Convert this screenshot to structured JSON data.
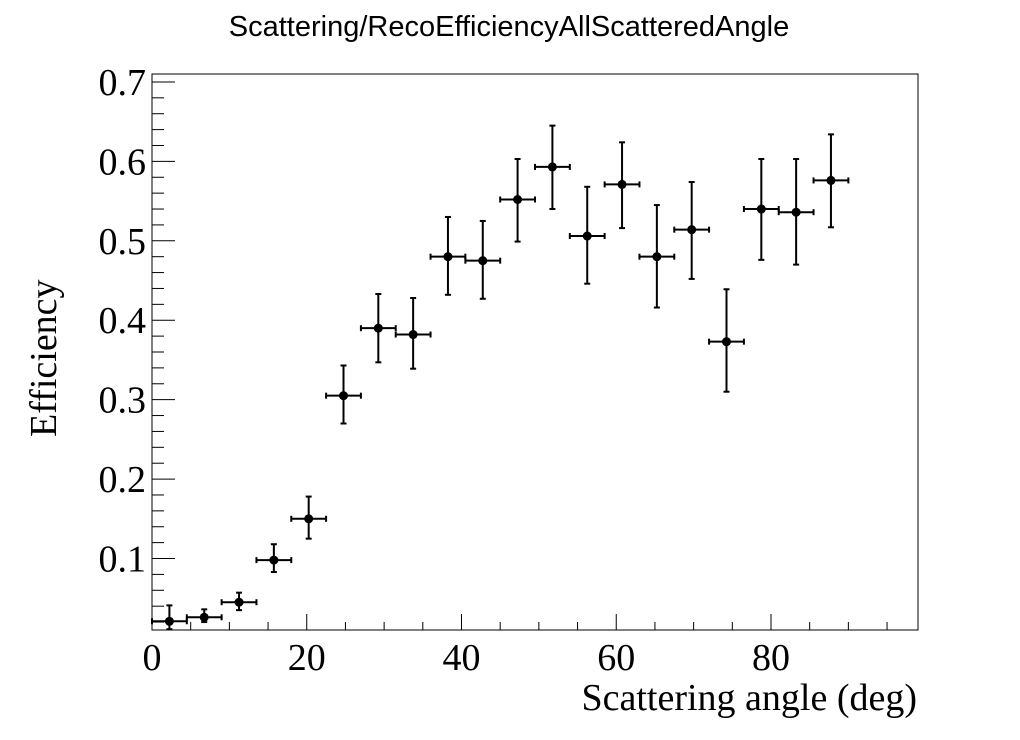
{
  "chart_data": {
    "type": "scatter",
    "title": "Scattering/RecoEfficiencyAllScatteredAngle",
    "xlabel": "Scattering angle (deg)",
    "ylabel": "Efficiency",
    "xlim": [
      0,
      99
    ],
    "ylim": [
      0.01,
      0.71
    ],
    "x_ticks": [
      "0",
      "20",
      "40",
      "60",
      "80"
    ],
    "y_ticks": [
      "0.1",
      "0.2",
      "0.3",
      "0.4",
      "0.5",
      "0.6",
      "0.7"
    ],
    "grid": false,
    "legend": "none",
    "series": [
      {
        "x": [
          2.25,
          6.75,
          11.25,
          15.75,
          20.25,
          24.75,
          29.25,
          33.75,
          38.25,
          42.75,
          47.25,
          51.75,
          56.25,
          60.75,
          65.25,
          69.75,
          74.25,
          78.75,
          83.25,
          87.75
        ],
        "y": [
          0.021,
          0.026,
          0.045,
          0.098,
          0.15,
          0.305,
          0.39,
          0.382,
          0.48,
          0.475,
          0.552,
          0.593,
          0.506,
          0.571,
          0.48,
          0.514,
          0.373,
          0.54,
          0.536,
          0.576
        ],
        "x_err": [
          2.25,
          2.25,
          2.25,
          2.25,
          2.25,
          2.25,
          2.25,
          2.25,
          2.25,
          2.25,
          2.25,
          2.25,
          2.25,
          2.25,
          2.25,
          2.25,
          2.25,
          2.25,
          2.25,
          2.25
        ],
        "y_low": [
          0.011,
          0.02,
          0.035,
          0.083,
          0.125,
          0.27,
          0.347,
          0.339,
          0.432,
          0.427,
          0.499,
          0.54,
          0.446,
          0.516,
          0.416,
          0.452,
          0.31,
          0.476,
          0.47,
          0.517
        ],
        "y_high": [
          0.041,
          0.036,
          0.057,
          0.118,
          0.178,
          0.343,
          0.433,
          0.428,
          0.53,
          0.525,
          0.603,
          0.645,
          0.568,
          0.624,
          0.545,
          0.574,
          0.439,
          0.603,
          0.603,
          0.634
        ]
      }
    ]
  }
}
